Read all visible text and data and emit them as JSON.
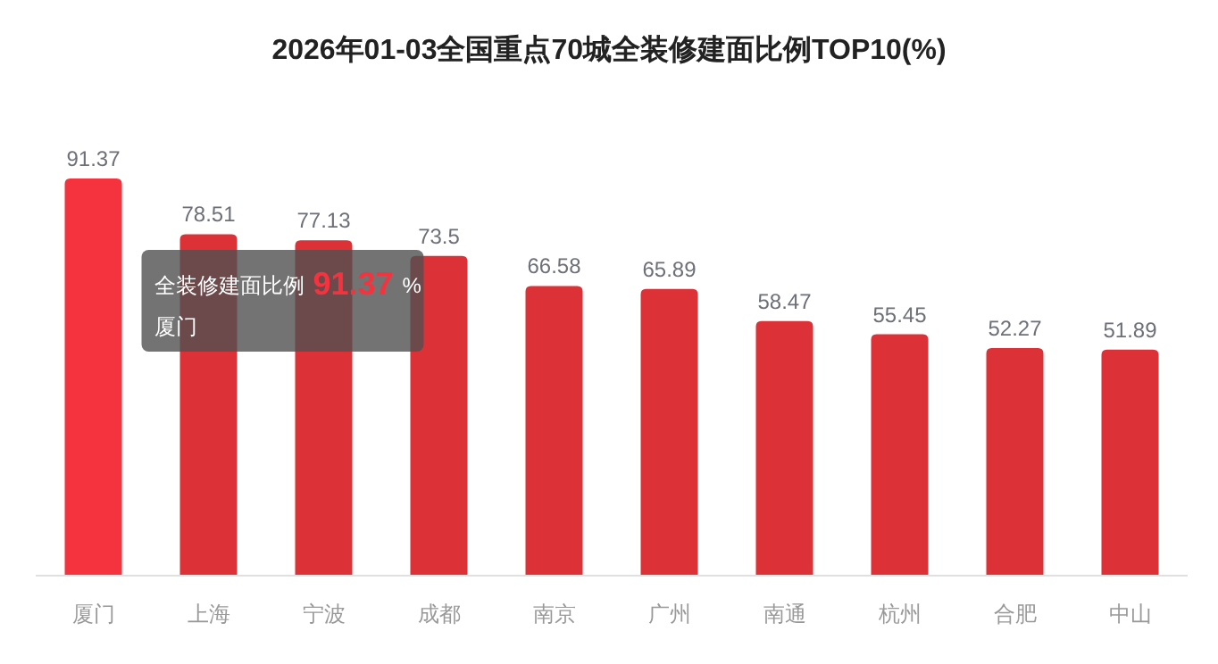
{
  "chart_data": {
    "type": "bar",
    "title": "2026年01-03全国重点70城全装修建面比例TOP10(%)",
    "categories": [
      "厦门",
      "上海",
      "宁波",
      "成都",
      "南京",
      "广州",
      "南通",
      "杭州",
      "合肥",
      "中山"
    ],
    "values": [
      91.37,
      78.51,
      77.13,
      73.5,
      66.58,
      65.89,
      58.47,
      55.45,
      52.27,
      51.89
    ],
    "colors": [
      "#f5333f",
      "#dc3237",
      "#dc3237",
      "#dc3237",
      "#dc3237",
      "#dc3237",
      "#dc3237",
      "#dc3237",
      "#dc3237",
      "#dc3237"
    ],
    "data_labels": true,
    "annotations": [
      "全装修建面比例",
      "91.37",
      "%",
      "厦门"
    ]
  }
}
